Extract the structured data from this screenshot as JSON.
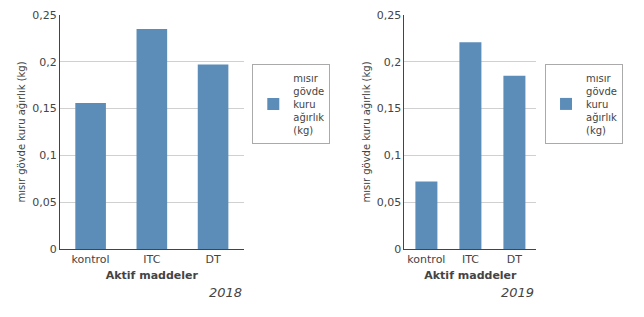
{
  "chart_data": [
    {
      "type": "bar",
      "categories": [
        "kontrol",
        "ITC",
        "DT"
      ],
      "series": [
        {
          "name": "mısır\ngövde\nkuru\nağırlık\n(kg)",
          "color": "#5B8DB8",
          "values": [
            0.156,
            0.235,
            0.197
          ]
        }
      ],
      "xlabel": "Aktif maddeler",
      "ylabel": "mısır gövde kuru ağırlık (kg)",
      "annotations": [
        "2018"
      ],
      "ylim": [
        0,
        0.25
      ],
      "yticks": [
        0,
        {
          "value": 0.05,
          "label": "0,05"
        },
        {
          "value": 0.1,
          "label": "0,1"
        },
        {
          "value": 0.15,
          "label": "0,15"
        },
        {
          "value": 0.2,
          "label": "0,2"
        },
        {
          "value": 0.25,
          "label": "0,25"
        }
      ],
      "grid": true,
      "legend": "right"
    },
    {
      "type": "bar",
      "categories": [
        "kontrol",
        "ITC",
        "DT"
      ],
      "series": [
        {
          "name": "mısır\ngövde\nkuru\nağırlık\n(kg)",
          "color": "#5B8DB8",
          "values": [
            0.072,
            0.221,
            0.185
          ]
        }
      ],
      "xlabel": "Aktif maddeler",
      "ylabel": "mısır gövde kuru ağırlık (kg)",
      "annotations": [
        "2019"
      ],
      "ylim": [
        0,
        0.25
      ],
      "yticks": [
        0,
        {
          "value": 0.05,
          "label": "0,05"
        },
        {
          "value": 0.1,
          "label": "0,1"
        },
        {
          "value": 0.15,
          "label": "0,15"
        },
        {
          "value": 0.2,
          "label": "0,2"
        },
        {
          "value": 0.25,
          "label": "0,25"
        }
      ],
      "grid": true,
      "legend": "right"
    }
  ]
}
